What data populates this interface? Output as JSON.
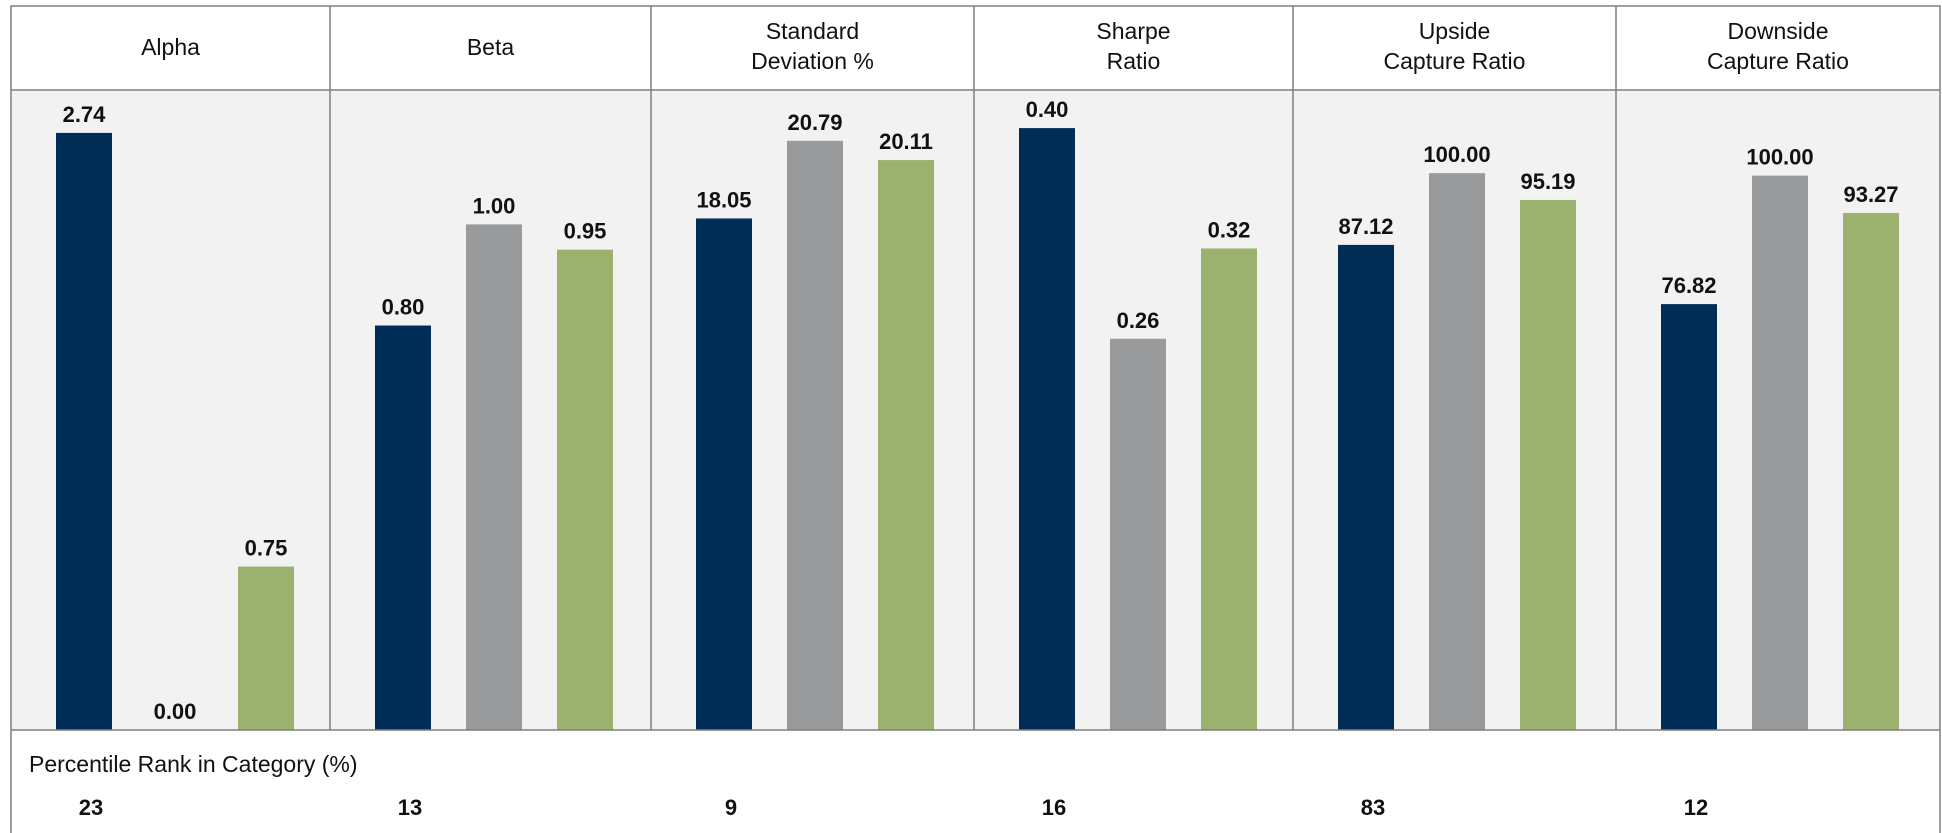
{
  "colors": {
    "fund": "#002D56",
    "benchmark": "#999A9C",
    "category": "#9BB16E",
    "panel_bg": "#F2F2F2",
    "border": "#7F7F7F"
  },
  "chart_data": {
    "type": "bar",
    "panels": [
      {
        "title_lines": [
          "Alpha"
        ],
        "values": [
          2.74,
          0.0,
          0.75
        ],
        "labels": [
          "2.74",
          "0.00",
          "0.75"
        ],
        "ylim": [
          0,
          2.9
        ],
        "percentile": "23"
      },
      {
        "title_lines": [
          "Beta"
        ],
        "values": [
          0.8,
          1.0,
          0.95
        ],
        "labels": [
          "0.80",
          "1.00",
          "0.95"
        ],
        "ylim": [
          0,
          1.25
        ],
        "percentile": "13"
      },
      {
        "title_lines": [
          "Standard",
          "Deviation %"
        ],
        "values": [
          18.05,
          20.79,
          20.11
        ],
        "labels": [
          "18.05",
          "20.79",
          "20.11"
        ],
        "ylim": [
          0,
          22.3
        ],
        "percentile": "9"
      },
      {
        "title_lines": [
          "Sharpe",
          "Ratio"
        ],
        "values": [
          0.4,
          0.26,
          0.32
        ],
        "labels": [
          "0.40",
          "0.26",
          "0.32"
        ],
        "ylim": [
          0,
          0.42
        ],
        "percentile": "16"
      },
      {
        "title_lines": [
          "Upside",
          "Capture Ratio"
        ],
        "values": [
          87.12,
          100.0,
          95.19
        ],
        "labels": [
          "87.12",
          "100.00",
          "95.19"
        ],
        "ylim": [
          0,
          113.5
        ],
        "percentile": "83"
      },
      {
        "title_lines": [
          "Downside",
          "Capture Ratio"
        ],
        "values": [
          76.82,
          100.0,
          93.27
        ],
        "labels": [
          "76.82",
          "100.00",
          "93.27"
        ],
        "ylim": [
          0,
          114
        ],
        "percentile": "12"
      }
    ],
    "percentile_title": "Percentile Rank in Category (%)"
  }
}
